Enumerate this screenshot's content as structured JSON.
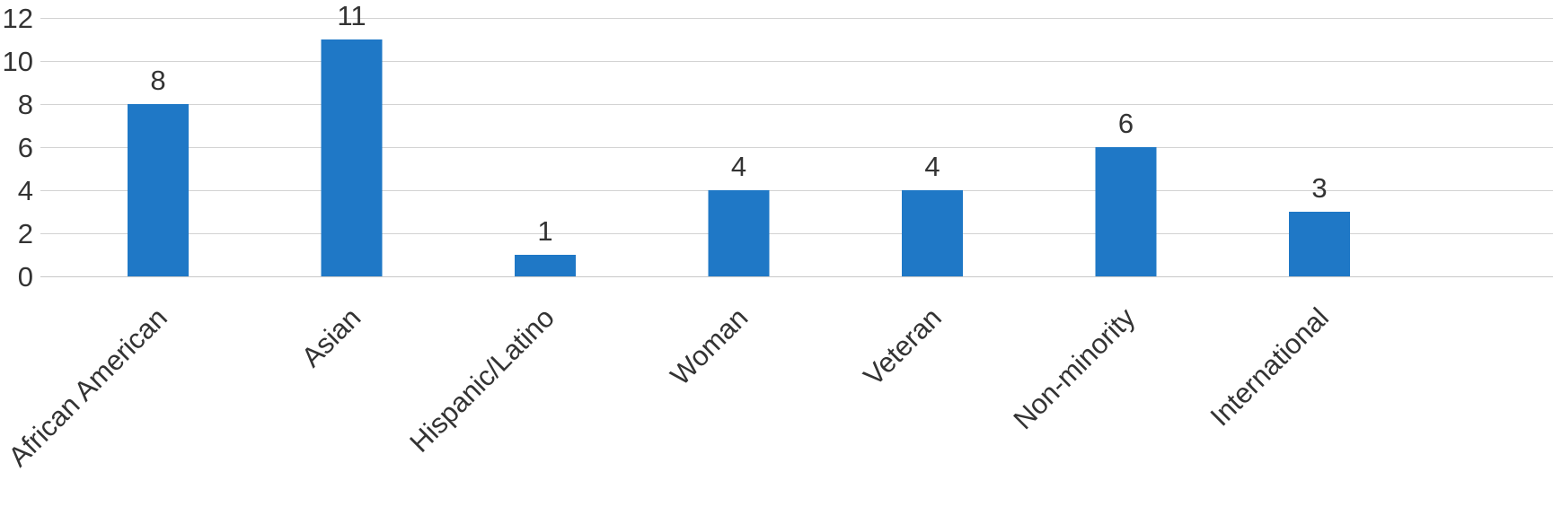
{
  "chart_data": {
    "type": "bar",
    "title": "",
    "xlabel": "",
    "ylabel": "",
    "categories": [
      "African American",
      "Asian",
      "Hispanic/Latino",
      "Woman",
      "Veteran",
      "Non-minority",
      "International"
    ],
    "values": [
      8,
      11,
      1,
      4,
      4,
      6,
      3
    ],
    "data_labels": [
      "8",
      "11",
      "1",
      "4",
      "4",
      "6",
      "3"
    ],
    "ylim": [
      0,
      12
    ],
    "yticks": [
      0,
      2,
      4,
      6,
      8,
      10,
      12
    ],
    "grid": true,
    "legend": "none",
    "bar_color": "#1f78c6",
    "grid_color": "#d3d3d3",
    "text_color": "#333333"
  }
}
